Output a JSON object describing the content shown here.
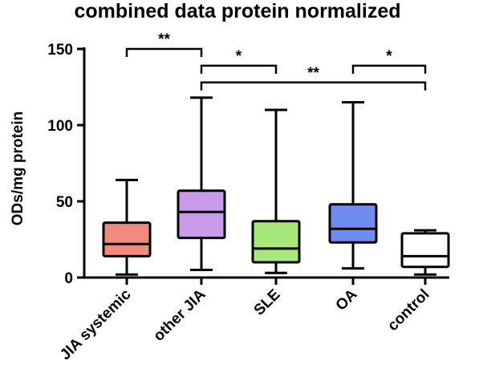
{
  "chart_data": {
    "type": "box",
    "title": "combined data protein normalized",
    "xlabel": "",
    "ylabel": "ODs/mg protein",
    "ylim": [
      0,
      150
    ],
    "yticks": [
      0,
      50,
      100,
      150
    ],
    "grid": false,
    "categories": [
      "JIA systemic",
      "other JIA",
      "SLE",
      "OA",
      "control"
    ],
    "boxes": [
      {
        "category": "JIA systemic",
        "min": 2,
        "q1": 14,
        "median": 22,
        "q3": 36,
        "max": 64,
        "color": "#f08a7e"
      },
      {
        "category": "other JIA",
        "min": 5,
        "q1": 26,
        "median": 43,
        "q3": 57,
        "max": 118,
        "color": "#c99ae8"
      },
      {
        "category": "SLE",
        "min": 3,
        "q1": 10,
        "median": 19,
        "q3": 37,
        "max": 110,
        "color": "#a6e879"
      },
      {
        "category": "OA",
        "min": 6,
        "q1": 23,
        "median": 32,
        "q3": 48,
        "max": 115,
        "color": "#6f8cf2"
      },
      {
        "category": "control",
        "min": 2,
        "q1": 7,
        "median": 14,
        "q3": 29,
        "max": 31,
        "color": "#ffffff"
      }
    ],
    "significance": [
      {
        "from": "JIA systemic",
        "to": "other JIA",
        "label": "**",
        "level": 150
      },
      {
        "from": "other JIA",
        "to": "SLE",
        "label": "*",
        "level": 139
      },
      {
        "from": "other JIA",
        "to": "control",
        "label": "**",
        "level": 128
      },
      {
        "from": "OA",
        "to": "control",
        "label": "*",
        "level": 139
      }
    ]
  }
}
